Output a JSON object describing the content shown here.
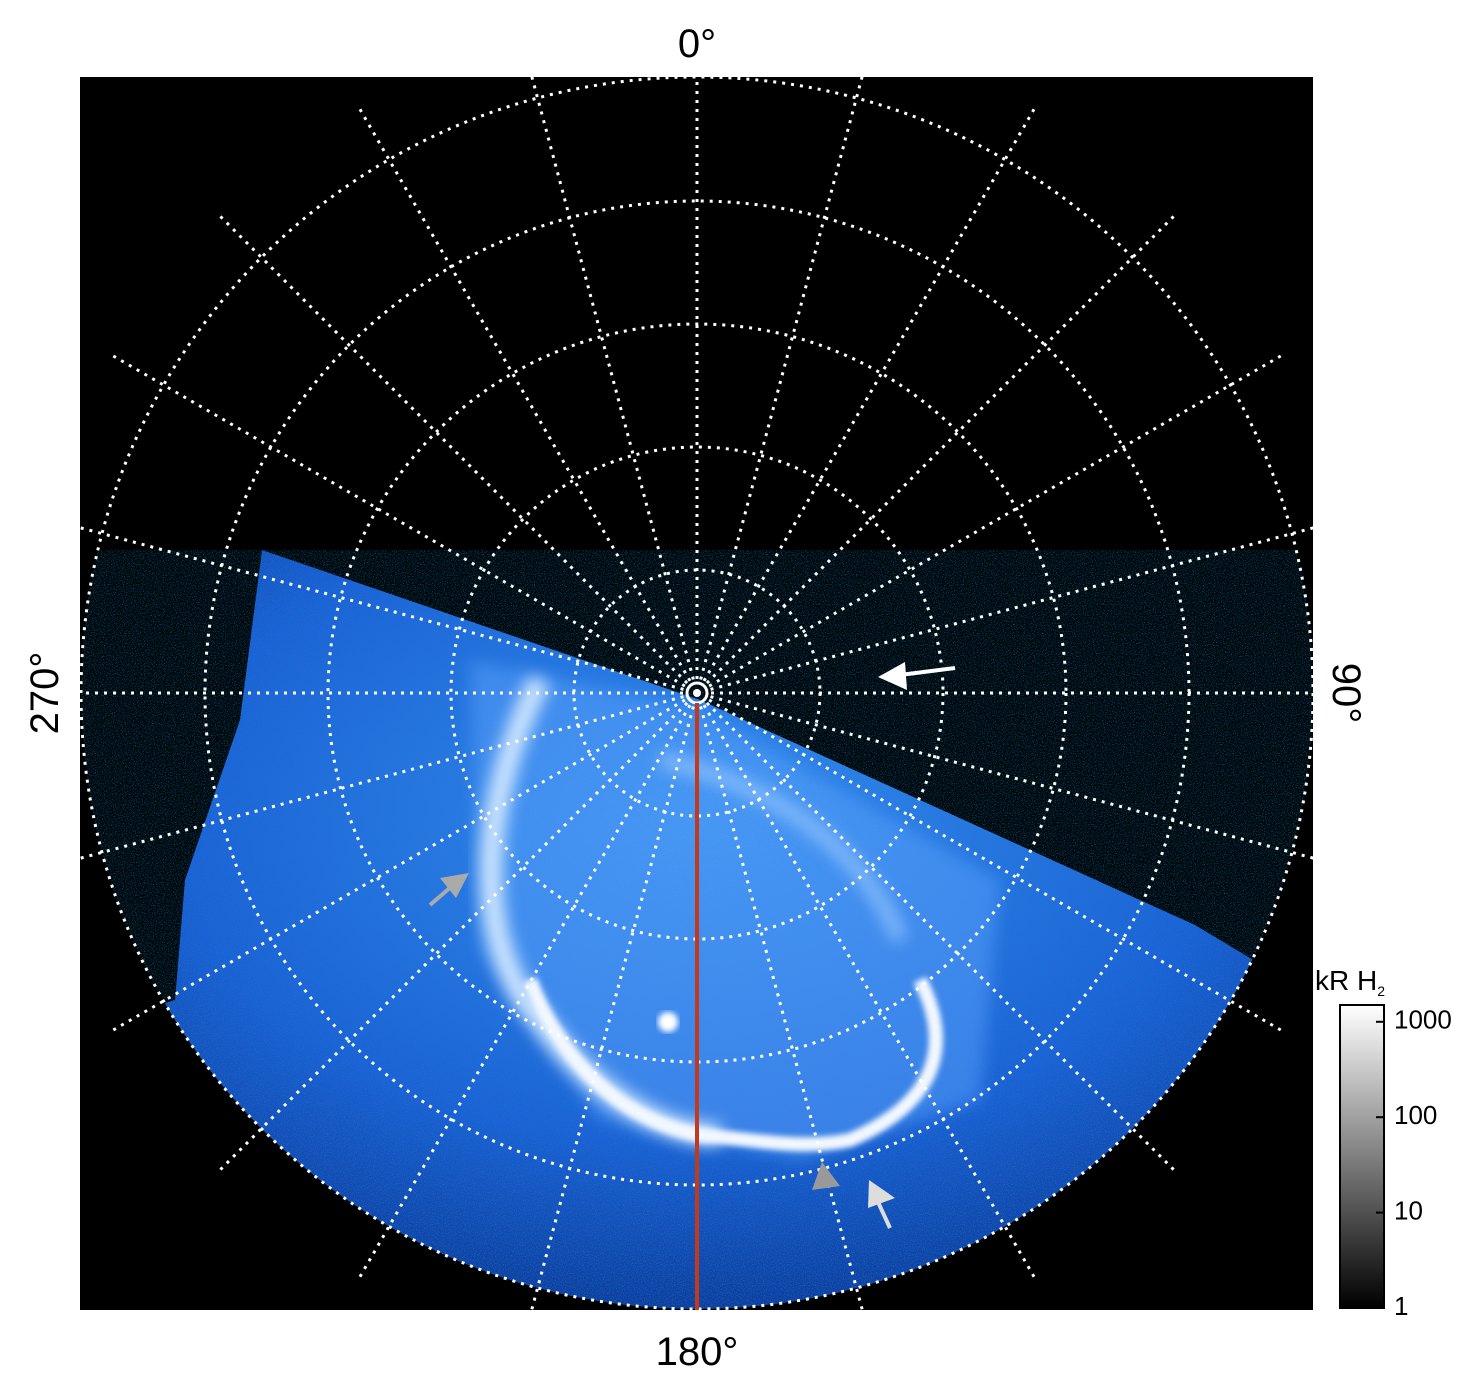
{
  "axis_labels": {
    "top": "0°",
    "right": "90°",
    "bottom": "180°",
    "left": "270°"
  },
  "colorbar": {
    "title": "kR H",
    "title_subscript": "2",
    "scale": "log",
    "lim": [
      1,
      1500
    ],
    "ticks": [
      1,
      10,
      100,
      1000
    ]
  }
}
